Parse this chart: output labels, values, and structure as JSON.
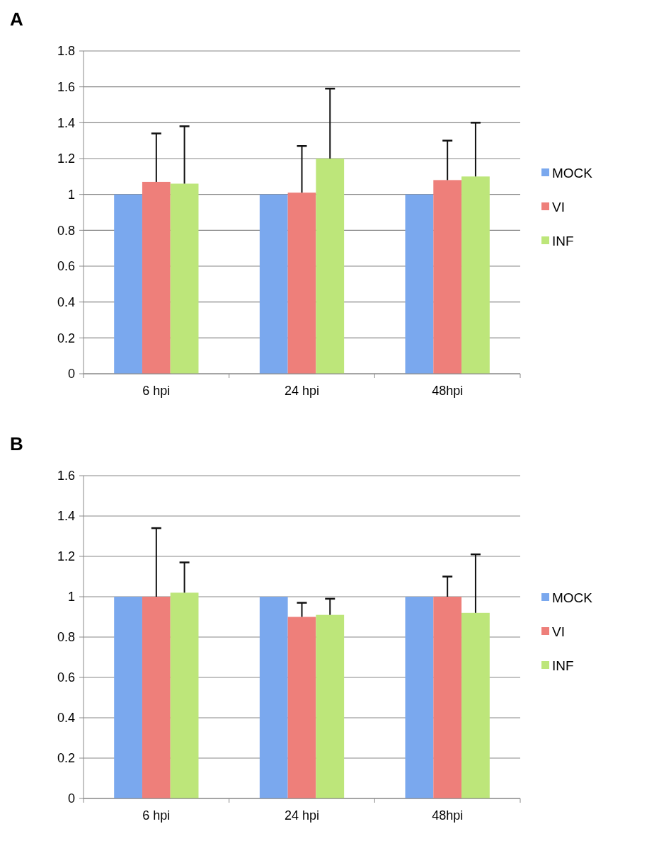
{
  "chart_data": [
    {
      "type": "bar",
      "title": "A",
      "categories": [
        "6 hpi",
        "24 hpi",
        "48hpi"
      ],
      "ylim": [
        0,
        1.8
      ],
      "yticks": [
        0,
        0.2,
        0.4,
        0.6,
        0.8,
        1,
        1.2,
        1.4,
        1.6,
        1.8
      ],
      "grid": "y",
      "legend": "right",
      "series": [
        {
          "name": "MOCK",
          "color": "#7aa8ee",
          "values": [
            1,
            1,
            1
          ]
        },
        {
          "name": "VI",
          "color": "#ee7f7a",
          "values": [
            1.07,
            1.01,
            1.08
          ],
          "errors": [
            [
              1.07,
              1.34
            ],
            [
              1.01,
              1.27
            ],
            [
              1.08,
              1.3
            ]
          ]
        },
        {
          "name": "INF",
          "color": "#bde67a",
          "values": [
            1.06,
            1.2,
            1.1
          ],
          "errors": [
            [
              1.06,
              1.38
            ],
            [
              1.2,
              1.59
            ],
            [
              1.1,
              1.4
            ]
          ]
        }
      ]
    },
    {
      "type": "bar",
      "title": "B",
      "categories": [
        "6 hpi",
        "24 hpi",
        "48hpi"
      ],
      "ylim": [
        0,
        1.6
      ],
      "yticks": [
        0,
        0.2,
        0.4,
        0.6,
        0.8,
        1,
        1.2,
        1.4,
        1.6
      ],
      "grid": "y",
      "legend": "right",
      "series": [
        {
          "name": "MOCK",
          "color": "#7aa8ee",
          "values": [
            1,
            1,
            1
          ]
        },
        {
          "name": "VI",
          "color": "#ee7f7a",
          "values": [
            1,
            0.9,
            1
          ],
          "errors": [
            [
              1,
              1.34
            ],
            [
              0.9,
              0.97
            ],
            [
              1,
              1.1
            ]
          ]
        },
        {
          "name": "INF",
          "color": "#bde67a",
          "values": [
            1.02,
            0.91,
            0.92
          ],
          "errors": [
            [
              1.02,
              1.17
            ],
            [
              0.91,
              0.99
            ],
            [
              0.92,
              1.21
            ]
          ]
        }
      ]
    }
  ]
}
